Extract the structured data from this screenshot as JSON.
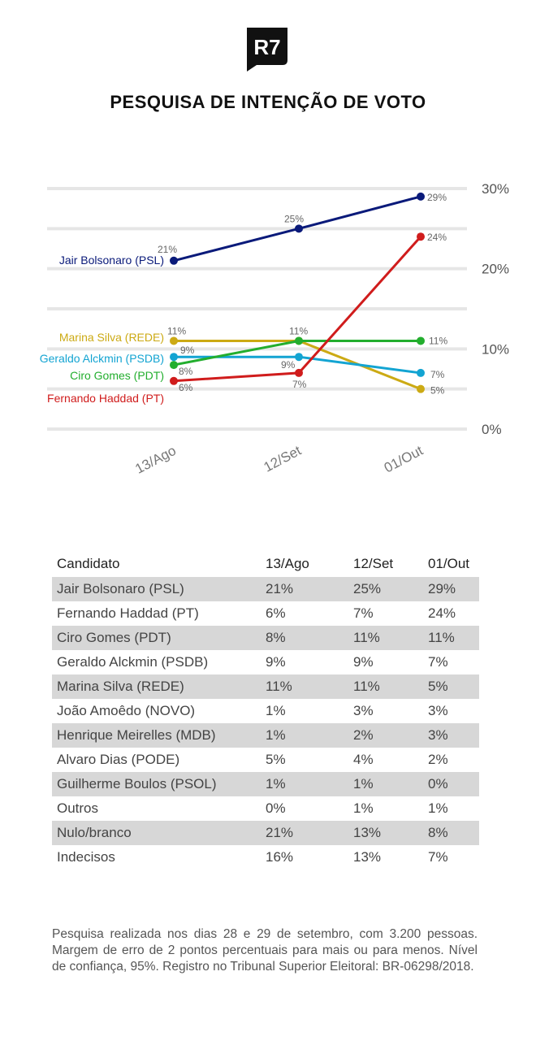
{
  "brand": {
    "logo_text": "R7"
  },
  "title": "PESQUISA DE INTENÇÃO DE VOTO",
  "chart_data": {
    "type": "line",
    "categories": [
      "13/Ago",
      "12/Set",
      "01/Out"
    ],
    "yticks": [
      "30%",
      "20%",
      "10%",
      "0%"
    ],
    "ylim": [
      0,
      30
    ],
    "grid": true,
    "series": [
      {
        "name": "Jair Bolsonaro (PSL)",
        "color": "#0a1a7a",
        "values": [
          21,
          25,
          29
        ],
        "labels": [
          "21%",
          "25%",
          "29%"
        ]
      },
      {
        "name": "Marina Silva (REDE)",
        "color": "#ccaa14",
        "values": [
          11,
          11,
          5
        ],
        "labels": [
          "11%",
          "11%",
          "5%"
        ]
      },
      {
        "name": "Geraldo Alckmin (PSDB)",
        "color": "#13a4d2",
        "values": [
          9,
          9,
          7
        ],
        "labels": [
          "9%",
          "9%",
          "7%"
        ]
      },
      {
        "name": "Ciro Gomes (PDT)",
        "color": "#23ae2e",
        "values": [
          8,
          11,
          11
        ],
        "labels": [
          "8%",
          "",
          "11%"
        ]
      },
      {
        "name": "Fernando Haddad (PT)",
        "color": "#d01c1c",
        "values": [
          6,
          7,
          24
        ],
        "labels": [
          "6%",
          "7%",
          "24%"
        ]
      }
    ]
  },
  "table": {
    "headers": [
      "Candidato",
      "13/Ago",
      "12/Set",
      "01/Out"
    ],
    "rows": [
      [
        "Jair Bolsonaro (PSL)",
        "21%",
        "25%",
        "29%"
      ],
      [
        "Fernando Haddad (PT)",
        "6%",
        "7%",
        "24%"
      ],
      [
        "Ciro Gomes (PDT)",
        "8%",
        "11%",
        "11%"
      ],
      [
        "Geraldo Alckmin (PSDB)",
        "9%",
        "9%",
        "7%"
      ],
      [
        "Marina Silva (REDE)",
        "11%",
        "11%",
        "5%"
      ],
      [
        "João Amoêdo (NOVO)",
        "1%",
        "3%",
        "3%"
      ],
      [
        "Henrique Meirelles (MDB)",
        "1%",
        "2%",
        "3%"
      ],
      [
        "Alvaro Dias (PODE)",
        "5%",
        "4%",
        "2%"
      ],
      [
        "Guilherme Boulos (PSOL)",
        "1%",
        "1%",
        "0%"
      ],
      [
        "Outros",
        "0%",
        "1%",
        "1%"
      ],
      [
        "Nulo/branco",
        "21%",
        "13%",
        "8%"
      ],
      [
        "Indecisos",
        "16%",
        "13%",
        "7%"
      ]
    ]
  },
  "footnote": "Pesquisa realizada nos dias 28 e 29 de setembro, com 3.200 pessoas. Margem de erro de 2 pontos percentuais para mais ou para menos. Nível de confiança, 95%. Registro no Tribunal Superior Eleitoral: BR-06298/2018."
}
